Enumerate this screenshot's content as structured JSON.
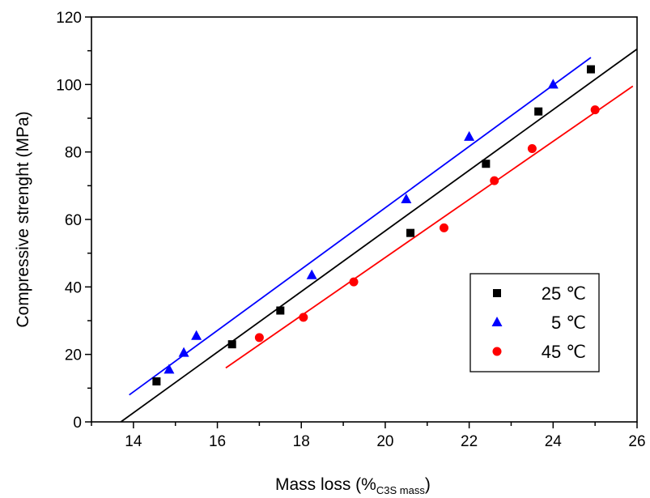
{
  "chart_data": {
    "type": "scatter",
    "xlabel": "Mass loss (%",
    "xlabel_sub": "C3S mass",
    "xlabel_end": ")",
    "ylabel": "Compressive strenght (MPa)",
    "xlim": [
      13,
      26
    ],
    "ylim": [
      0,
      120
    ],
    "xticks": [
      14,
      16,
      18,
      20,
      22,
      24,
      26
    ],
    "yticks": [
      0,
      20,
      40,
      60,
      80,
      100,
      120
    ],
    "grid": false,
    "legend_position": "lower-right",
    "series": [
      {
        "name": "25 ℃",
        "color": "#000000",
        "marker": "square",
        "points": [
          [
            14.55,
            12
          ],
          [
            16.35,
            23
          ],
          [
            17.5,
            33
          ],
          [
            20.6,
            56
          ],
          [
            22.4,
            76.5
          ],
          [
            23.65,
            92
          ],
          [
            24.9,
            104.5
          ]
        ],
        "fit": [
          [
            13.7,
            0
          ],
          [
            26,
            110.5
          ]
        ]
      },
      {
        "name": "5 ℃",
        "color": "#0000ff",
        "marker": "triangle",
        "points": [
          [
            14.85,
            15.5
          ],
          [
            15.2,
            20.5
          ],
          [
            15.5,
            25.5
          ],
          [
            18.25,
            43.5
          ],
          [
            20.5,
            66
          ],
          [
            22.0,
            84.5
          ],
          [
            24.0,
            100
          ]
        ],
        "fit": [
          [
            13.9,
            8
          ],
          [
            24.9,
            108
          ]
        ]
      },
      {
        "name": "45 ℃",
        "color": "#ff0000",
        "marker": "circle",
        "points": [
          [
            17.0,
            25
          ],
          [
            18.05,
            31
          ],
          [
            19.25,
            41.5
          ],
          [
            21.4,
            57.5
          ],
          [
            22.6,
            71.5
          ],
          [
            23.5,
            81
          ],
          [
            25.0,
            92.5
          ]
        ],
        "fit": [
          [
            16.2,
            16
          ],
          [
            25.9,
            99.5
          ]
        ]
      }
    ]
  }
}
